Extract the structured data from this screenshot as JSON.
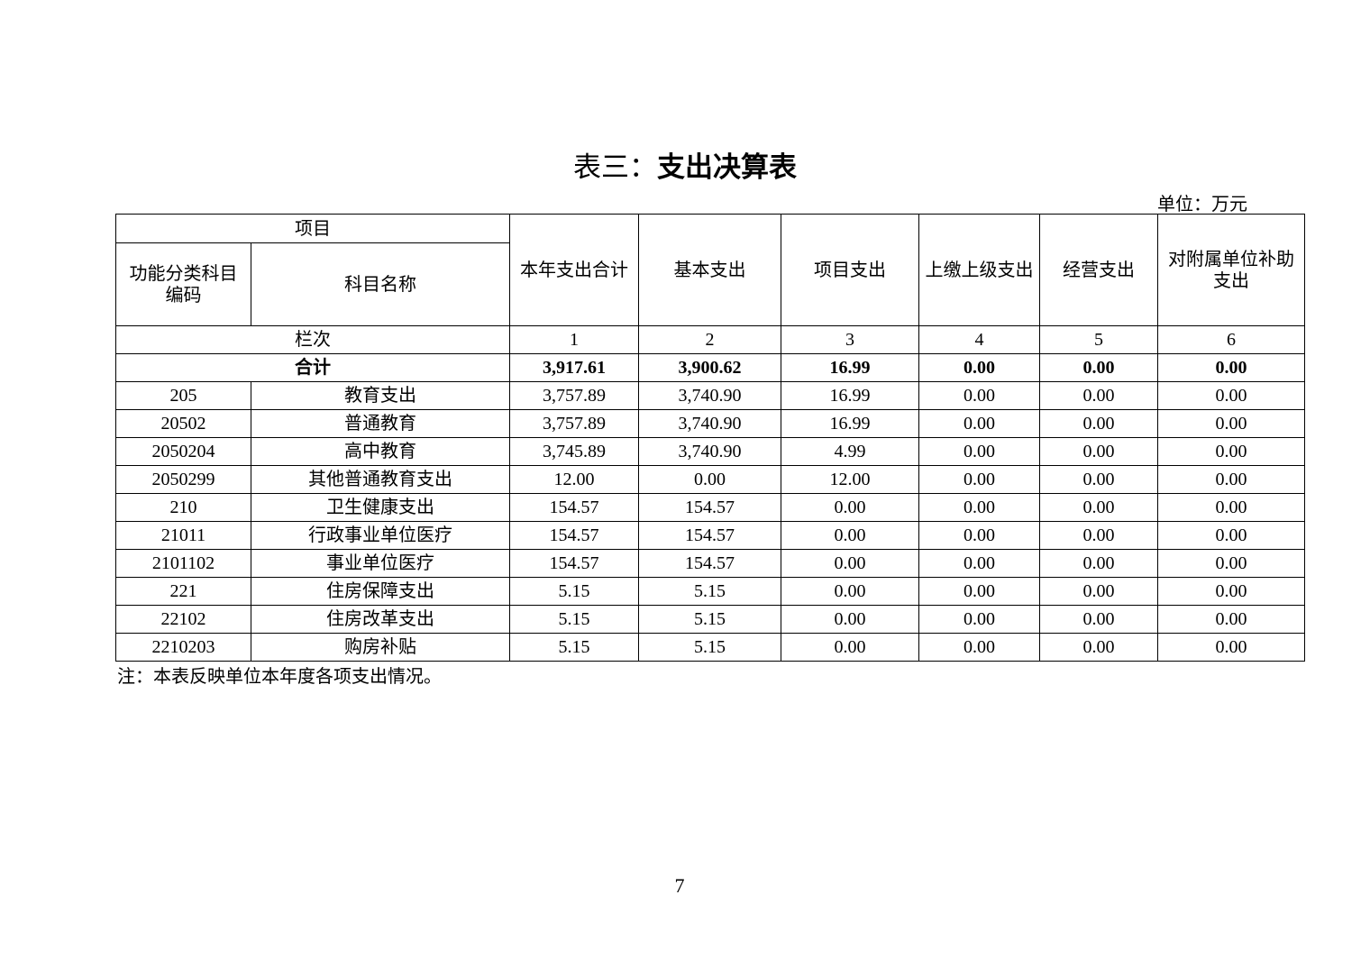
{
  "title_prefix": "表三：",
  "title_main": "支出决算表",
  "unit": "单位：万元",
  "headers": {
    "item": "项目",
    "code": "功能分类科目编码",
    "name": "科目名称",
    "cols": [
      "本年支出合计",
      "基本支出",
      "项目支出",
      "上缴上级支出",
      "经营支出",
      "对附属单位补助支出"
    ]
  },
  "column_index": {
    "label": "栏次",
    "values": [
      "1",
      "2",
      "3",
      "4",
      "5",
      "6"
    ]
  },
  "total": {
    "label": "合计",
    "values": [
      "3,917.61",
      "3,900.62",
      "16.99",
      "0.00",
      "0.00",
      "0.00"
    ]
  },
  "rows": [
    {
      "code": "205",
      "name": "教育支出",
      "values": [
        "3,757.89",
        "3,740.90",
        "16.99",
        "0.00",
        "0.00",
        "0.00"
      ]
    },
    {
      "code": "20502",
      "name": "普通教育",
      "values": [
        "3,757.89",
        "3,740.90",
        "16.99",
        "0.00",
        "0.00",
        "0.00"
      ]
    },
    {
      "code": "2050204",
      "name": "高中教育",
      "values": [
        "3,745.89",
        "3,740.90",
        "4.99",
        "0.00",
        "0.00",
        "0.00"
      ]
    },
    {
      "code": "2050299",
      "name": "其他普通教育支出",
      "values": [
        "12.00",
        "0.00",
        "12.00",
        "0.00",
        "0.00",
        "0.00"
      ]
    },
    {
      "code": "210",
      "name": "卫生健康支出",
      "values": [
        "154.57",
        "154.57",
        "0.00",
        "0.00",
        "0.00",
        "0.00"
      ]
    },
    {
      "code": "21011",
      "name": "行政事业单位医疗",
      "values": [
        "154.57",
        "154.57",
        "0.00",
        "0.00",
        "0.00",
        "0.00"
      ]
    },
    {
      "code": "2101102",
      "name": "事业单位医疗",
      "values": [
        "154.57",
        "154.57",
        "0.00",
        "0.00",
        "0.00",
        "0.00"
      ]
    },
    {
      "code": "221",
      "name": "住房保障支出",
      "values": [
        "5.15",
        "5.15",
        "0.00",
        "0.00",
        "0.00",
        "0.00"
      ]
    },
    {
      "code": "22102",
      "name": "住房改革支出",
      "values": [
        "5.15",
        "5.15",
        "0.00",
        "0.00",
        "0.00",
        "0.00"
      ]
    },
    {
      "code": "2210203",
      "name": "购房补贴",
      "values": [
        "5.15",
        "5.15",
        "0.00",
        "0.00",
        "0.00",
        "0.00"
      ]
    }
  ],
  "note": "注：本表反映单位本年度各项支出情况。",
  "page_number": "7"
}
